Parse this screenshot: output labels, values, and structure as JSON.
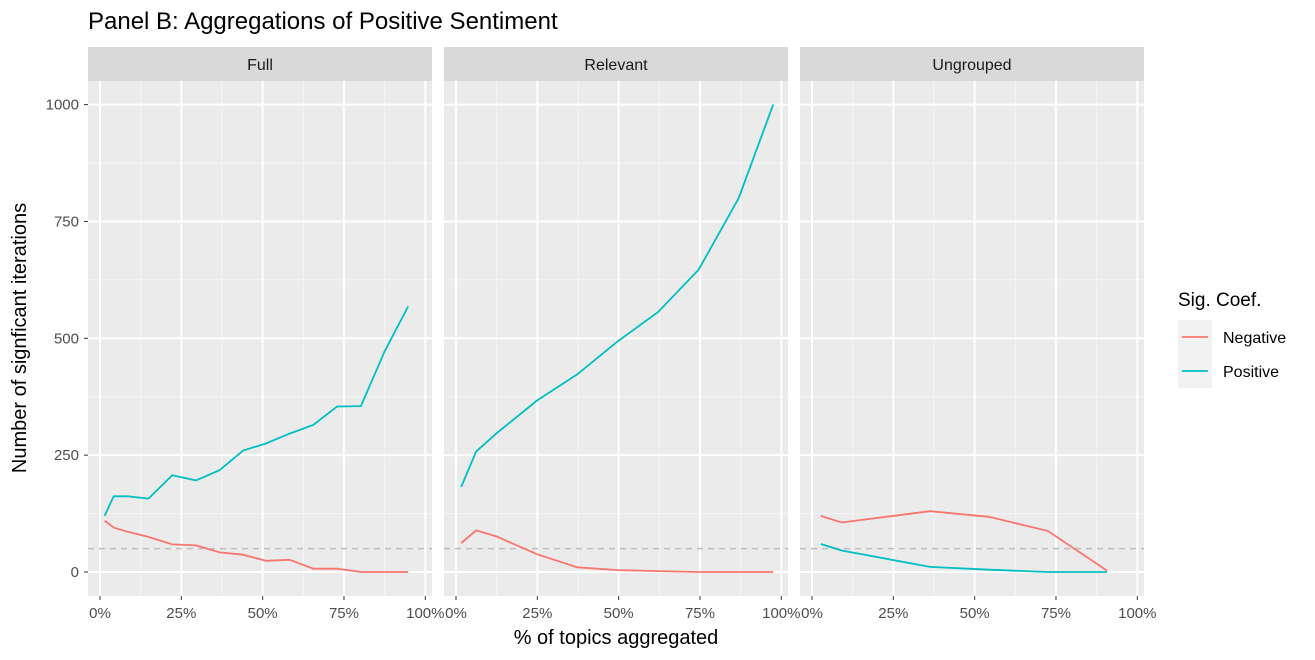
{
  "title": "Panel B: Aggregations of Positive Sentiment",
  "xlabel": "% of topics aggregated",
  "ylabel": "Number of signficant iterations",
  "legend": {
    "title": "Sig. Coef.",
    "entries": [
      {
        "label": "Negative",
        "color": "#F8766D"
      },
      {
        "label": "Positive",
        "color": "#00BFC4"
      }
    ]
  },
  "chart_data": {
    "type": "line",
    "facets": [
      "Full",
      "Relevant",
      "Ungrouped"
    ],
    "xlim": [
      0,
      100
    ],
    "ylim": [
      0,
      1000
    ],
    "x_ticks": [
      0,
      25,
      50,
      75,
      100
    ],
    "x_tick_labels": [
      "0%",
      "25%",
      "50%",
      "75%",
      "100%"
    ],
    "y_ticks": [
      0,
      250,
      500,
      750,
      1000
    ],
    "y_tick_labels": [
      "0",
      "250",
      "500",
      "750",
      "1000"
    ],
    "reference_line": {
      "y": 50,
      "style": "dashed",
      "color": "#bdbdbd"
    },
    "grid": true,
    "legend_position": "right",
    "panels": [
      {
        "name": "Full",
        "series": [
          {
            "name": "Positive",
            "x": [
              1.4,
              4.2,
              8.5,
              14.9,
              22.2,
              29.5,
              36.8,
              44.0,
              51.0,
              58.3,
              65.6,
              72.9,
              80.2,
              87.5,
              94.7
            ],
            "y": [
              120,
              162,
              162,
              157,
              207,
              196,
              218,
              260,
              275,
              296,
              315,
              354,
              355,
              472,
              568
            ]
          },
          {
            "name": "Negative",
            "x": [
              1.4,
              4.2,
              8.5,
              14.9,
              22.2,
              29.5,
              36.8,
              44.0,
              51.0,
              58.3,
              65.6,
              72.9,
              80.2,
              87.5,
              94.7
            ],
            "y": [
              110,
              95,
              86,
              75,
              59,
              57,
              42,
              37,
              24,
              26,
              7,
              7,
              0,
              0,
              0
            ]
          }
        ]
      },
      {
        "name": "Relevant",
        "series": [
          {
            "name": "Positive",
            "x": [
              1.6,
              6.2,
              12.5,
              24.9,
              37.3,
              49.8,
              62.1,
              74.6,
              86.9,
              97.5
            ],
            "y": [
              182,
              258,
              297,
              367,
              423,
              494,
              556,
              647,
              800,
              1000
            ]
          },
          {
            "name": "Negative",
            "x": [
              1.6,
              6.2,
              12.5,
              24.9,
              37.3,
              49.8,
              62.1,
              74.6,
              86.9,
              97.5
            ],
            "y": [
              62,
              89,
              76,
              38,
              10,
              4,
              2,
              0,
              0,
              0
            ]
          }
        ]
      },
      {
        "name": "Ungrouped",
        "series": [
          {
            "name": "Positive",
            "x": [
              2.7,
              9.1,
              36.3,
              54.4,
              72.5,
              90.7
            ],
            "y": [
              60,
              46,
              11,
              5,
              0,
              0
            ]
          },
          {
            "name": "Negative",
            "x": [
              2.7,
              9.1,
              36.3,
              54.4,
              72.5,
              90.7
            ],
            "y": [
              120,
              106,
              130,
              118,
              88,
              3
            ]
          }
        ]
      }
    ]
  }
}
